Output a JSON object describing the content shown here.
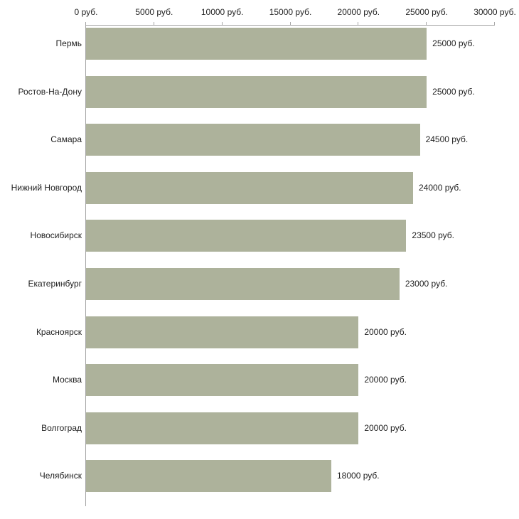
{
  "chart_data": {
    "type": "bar",
    "orientation": "horizontal",
    "title": "",
    "xlabel": "",
    "ylabel": "",
    "xlim": [
      0,
      30000
    ],
    "x_tick_values": [
      0,
      5000,
      10000,
      15000,
      20000,
      25000,
      30000
    ],
    "x_tick_labels": [
      "0 руб.",
      "5000 руб.",
      "10000 руб.",
      "15000 руб.",
      "20000 руб.",
      "25000 руб.",
      "30000 руб."
    ],
    "categories": [
      "Пермь",
      "Ростов-На-Дону",
      "Самара",
      "Нижний Новгород",
      "Новосибирск",
      "Екатеринбург",
      "Красноярск",
      "Москва",
      "Волгоград",
      "Челябинск"
    ],
    "values": [
      25000,
      25000,
      24500,
      24000,
      23500,
      23000,
      20000,
      20000,
      20000,
      18000
    ],
    "bar_labels": [
      "25000 руб.",
      "25000 руб.",
      "24500 руб.",
      "24000 руб.",
      "23500 руб.",
      "23000 руб.",
      "20000 руб.",
      "20000 руб.",
      "20000 руб.",
      "18000 руб."
    ],
    "bar_color": "#adb29b",
    "axis_color": "#a6a6a6",
    "grid": false,
    "legend": false
  }
}
